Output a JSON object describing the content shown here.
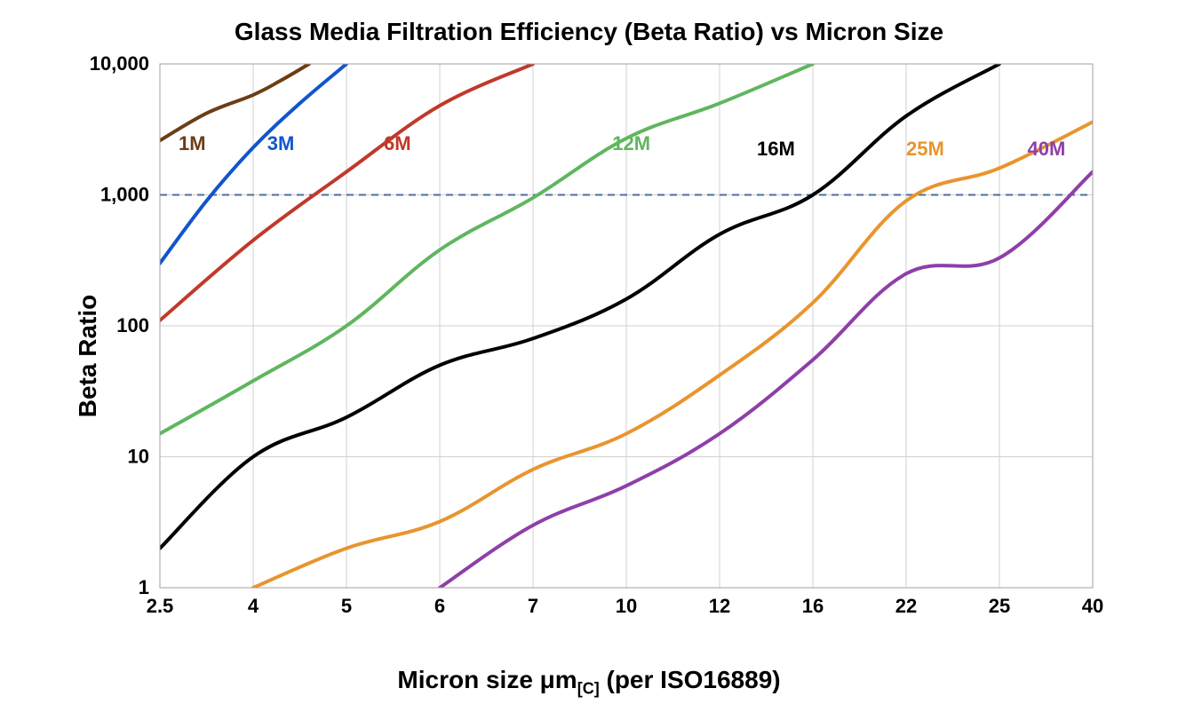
{
  "chart": {
    "type": "line",
    "title": "Glass Media Filtration Efficiency (Beta Ratio) vs Micron Size",
    "title_fontsize": 28,
    "x_axis": {
      "label": "Micron size μm",
      "label_sub": "[C]",
      "label_suffix": " (per ISO16889)",
      "label_fontsize": 28,
      "scale": "categorical",
      "ticks": [
        "2.5",
        "4",
        "5",
        "6",
        "7",
        "10",
        "12",
        "16",
        "22",
        "25",
        "40"
      ],
      "tick_fontsize": 22
    },
    "y_axis": {
      "label": "Beta Ratio",
      "label_fontsize": 28,
      "scale": "log",
      "ylim": [
        1,
        10000
      ],
      "ticks": [
        1,
        10,
        100,
        1000,
        10000
      ],
      "tick_labels": [
        "1",
        "10",
        "100",
        "1,000",
        "10,000"
      ],
      "tick_fontsize": 22
    },
    "grid": {
      "enabled": true,
      "color": "#d0d0d0",
      "line_width": 1
    },
    "reference_line": {
      "y": 1000,
      "color": "#4a6fa5",
      "dash": "8,6",
      "line_width": 2
    },
    "background_color": "#ffffff",
    "plot_border_color": "#a0a0a0",
    "line_width": 4,
    "series": [
      {
        "name": "1M",
        "color": "#6b3e15",
        "label_x_idx": 0.2,
        "label_y": 2200,
        "data": [
          {
            "x_idx": 0,
            "y": 2600
          },
          {
            "x_idx": 0.5,
            "y": 4200
          },
          {
            "x_idx": 1,
            "y": 5800
          },
          {
            "x_idx": 1.3,
            "y": 7500
          },
          {
            "x_idx": 1.6,
            "y": 10000
          }
        ]
      },
      {
        "name": "3M",
        "color": "#1155cc",
        "label_x_idx": 1.15,
        "label_y": 2200,
        "data": [
          {
            "x_idx": 0,
            "y": 300
          },
          {
            "x_idx": 0.5,
            "y": 900
          },
          {
            "x_idx": 1,
            "y": 2300
          },
          {
            "x_idx": 1.5,
            "y": 5000
          },
          {
            "x_idx": 2,
            "y": 10000
          }
        ]
      },
      {
        "name": "6M",
        "color": "#c0392b",
        "label_x_idx": 2.4,
        "label_y": 2200,
        "data": [
          {
            "x_idx": 0,
            "y": 110
          },
          {
            "x_idx": 1,
            "y": 450
          },
          {
            "x_idx": 2,
            "y": 1500
          },
          {
            "x_idx": 3,
            "y": 4800
          },
          {
            "x_idx": 4,
            "y": 10000
          }
        ]
      },
      {
        "name": "12M",
        "color": "#5fb65f",
        "label_x_idx": 4.85,
        "label_y": 2200,
        "data": [
          {
            "x_idx": 0,
            "y": 15
          },
          {
            "x_idx": 1,
            "y": 38
          },
          {
            "x_idx": 2,
            "y": 100
          },
          {
            "x_idx": 3,
            "y": 380
          },
          {
            "x_idx": 4,
            "y": 950
          },
          {
            "x_idx": 5,
            "y": 2700
          },
          {
            "x_idx": 6,
            "y": 5000
          },
          {
            "x_idx": 7,
            "y": 10000
          }
        ]
      },
      {
        "name": "16M",
        "color": "#000000",
        "label_x_idx": 6.4,
        "label_y": 2000,
        "data": [
          {
            "x_idx": 0,
            "y": 2
          },
          {
            "x_idx": 1,
            "y": 10
          },
          {
            "x_idx": 2,
            "y": 20
          },
          {
            "x_idx": 3,
            "y": 50
          },
          {
            "x_idx": 4,
            "y": 80
          },
          {
            "x_idx": 5,
            "y": 160
          },
          {
            "x_idx": 6,
            "y": 500
          },
          {
            "x_idx": 7,
            "y": 1000
          },
          {
            "x_idx": 8,
            "y": 4000
          },
          {
            "x_idx": 9,
            "y": 10000
          }
        ]
      },
      {
        "name": "25M",
        "color": "#e8952e",
        "label_x_idx": 8,
        "label_y": 2000,
        "data": [
          {
            "x_idx": 1,
            "y": 1
          },
          {
            "x_idx": 2,
            "y": 2
          },
          {
            "x_idx": 3,
            "y": 3.2
          },
          {
            "x_idx": 4,
            "y": 8
          },
          {
            "x_idx": 5,
            "y": 15
          },
          {
            "x_idx": 6,
            "y": 42
          },
          {
            "x_idx": 7,
            "y": 150
          },
          {
            "x_idx": 8,
            "y": 900
          },
          {
            "x_idx": 9,
            "y": 1600
          },
          {
            "x_idx": 10,
            "y": 3600
          }
        ]
      },
      {
        "name": "40M",
        "color": "#8e3fa8",
        "label_x_idx": 9.3,
        "label_y": 2000,
        "data": [
          {
            "x_idx": 3,
            "y": 1
          },
          {
            "x_idx": 4,
            "y": 3
          },
          {
            "x_idx": 5,
            "y": 6
          },
          {
            "x_idx": 6,
            "y": 15
          },
          {
            "x_idx": 7,
            "y": 55
          },
          {
            "x_idx": 8,
            "y": 250
          },
          {
            "x_idx": 9,
            "y": 330
          },
          {
            "x_idx": 10,
            "y": 1500
          }
        ]
      }
    ]
  }
}
